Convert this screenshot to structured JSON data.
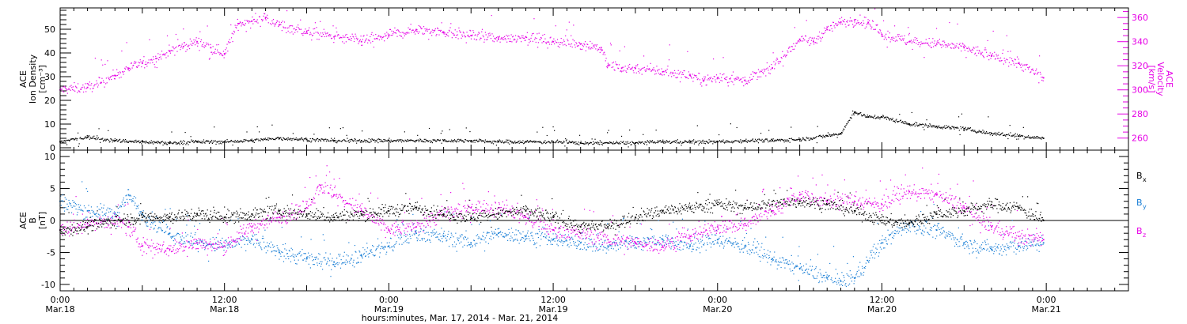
{
  "colors": {
    "black": "#000000",
    "magenta": "#e600e6",
    "blue": "#1a7fd6"
  },
  "time_axis": {
    "tick_labels": [
      {
        "time": "0:00",
        "date": "Mar.18",
        "hours": 0
      },
      {
        "time": "12:00",
        "date": "Mar.18",
        "hours": 12
      },
      {
        "time": "0:00",
        "date": "Mar.19",
        "hours": 24
      },
      {
        "time": "12:00",
        "date": "Mar.19",
        "hours": 36
      },
      {
        "time": "0:00",
        "date": "Mar.20",
        "hours": 48
      },
      {
        "time": "12:00",
        "date": "Mar.20",
        "hours": 60
      },
      {
        "time": "0:00",
        "date": "Mar.21",
        "hours": 72
      }
    ],
    "title": "hours:minutes, Mar. 17, 2014 - Mar. 21, 2014",
    "range_hours": [
      0,
      78
    ],
    "minor_tick_hours": 1,
    "medium_tick_hours": 6
  },
  "chart_data": [
    {
      "type": "scatter",
      "ylabel_left": [
        "ACE",
        "Ion Density",
        "[cm⁻³]"
      ],
      "ylabel_right": [
        "ACE",
        "Velocity",
        "[km/s]"
      ],
      "ylim_left": [
        -1,
        59
      ],
      "ylim_right": [
        250,
        368
      ],
      "yticks_left": [
        0,
        10,
        20,
        30,
        40,
        50
      ],
      "yticks_right": [
        260,
        280,
        300,
        320,
        340,
        360
      ],
      "series": [
        {
          "axis": "left",
          "color": "#000000",
          "x": [
            0,
            2,
            4,
            6,
            8,
            10,
            12,
            14,
            16,
            18,
            20,
            22,
            24,
            26,
            28,
            30,
            32,
            34,
            36,
            38,
            40,
            42,
            44,
            46,
            48,
            50,
            52,
            54,
            56,
            57,
            58,
            59,
            60,
            62,
            64,
            66,
            68,
            70,
            71.8
          ],
          "y": [
            2.5,
            4.5,
            3,
            2.5,
            2,
            2.5,
            2.5,
            3,
            4,
            3.5,
            3,
            3,
            3,
            3,
            3,
            3,
            2.5,
            2.5,
            2.5,
            2,
            2,
            2,
            2.5,
            2.5,
            2.5,
            3,
            3,
            3.5,
            5,
            6,
            15,
            13,
            13,
            10,
            9,
            8,
            6,
            5,
            4
          ]
        },
        {
          "axis": "right",
          "color": "#e600e6",
          "x": [
            0,
            2,
            3,
            4,
            5,
            6,
            7,
            8,
            9,
            10,
            11,
            12,
            13,
            14,
            15,
            16,
            18,
            20,
            22,
            24,
            26,
            28,
            30,
            32,
            34,
            36,
            38,
            39.5,
            40,
            41,
            42,
            44,
            46,
            47,
            48,
            50,
            52,
            54,
            55,
            56,
            57,
            58,
            59,
            60,
            62,
            64,
            66,
            68,
            70,
            71.8
          ],
          "y": [
            300,
            302,
            306,
            312,
            318,
            322,
            326,
            332,
            336,
            340,
            335,
            330,
            355,
            357,
            360,
            354,
            348,
            344,
            340,
            345,
            350,
            348,
            345,
            342,
            344,
            340,
            338,
            335,
            320,
            318,
            318,
            315,
            312,
            308,
            310,
            308,
            318,
            342,
            340,
            350,
            356,
            358,
            356,
            346,
            340,
            338,
            335,
            328,
            322,
            310
          ]
        }
      ]
    },
    {
      "type": "scatter",
      "ylabel": [
        "ACE",
        "B",
        "[nT]"
      ],
      "ylim": [
        -11,
        11
      ],
      "yticks": [
        -10,
        -5,
        0,
        5,
        10
      ],
      "zero_line": true,
      "legend": [
        {
          "label": "B",
          "sub": "x",
          "color": "#000000"
        },
        {
          "label": "B",
          "sub": "y",
          "color": "#1a7fd6"
        },
        {
          "label": "B",
          "sub": "z",
          "color": "#e600e6"
        }
      ],
      "series": [
        {
          "name": "Bx",
          "color": "#000000",
          "x": [
            0,
            2,
            4,
            6,
            8,
            10,
            12,
            14,
            16,
            18,
            20,
            22,
            24,
            26,
            28,
            30,
            32,
            34,
            36,
            38,
            40,
            42,
            44,
            46,
            48,
            50,
            52,
            54,
            56,
            58,
            60,
            62,
            64,
            66,
            68,
            70,
            71.8
          ],
          "y": [
            -1.5,
            -1,
            0,
            0.5,
            0.5,
            1,
            0.5,
            1,
            1.5,
            1,
            0.5,
            1,
            1.5,
            2,
            1,
            0.5,
            1,
            1.5,
            0.5,
            -1,
            -1,
            0.5,
            1.5,
            2,
            2.5,
            2,
            2.5,
            3,
            2.5,
            1.5,
            0,
            -0.5,
            1,
            1.5,
            2.5,
            2,
            0
          ]
        },
        {
          "name": "By",
          "color": "#1a7fd6",
          "x": [
            0,
            2,
            4,
            5,
            6,
            8,
            10,
            12,
            14,
            16,
            18,
            20,
            22,
            24,
            26,
            28,
            30,
            32,
            34,
            36,
            38,
            40,
            42,
            44,
            46,
            48,
            50,
            52,
            54,
            56,
            57,
            58,
            60,
            62,
            64,
            66,
            68,
            70,
            71.8
          ],
          "y": [
            3,
            1.5,
            1,
            4,
            1,
            -2,
            -3.5,
            -4,
            -3,
            -5,
            -6,
            -6.5,
            -5.5,
            -4,
            -2,
            -2.5,
            -3.5,
            -2,
            -2.5,
            -3,
            -3.5,
            -4,
            -3.5,
            -3,
            -4,
            -3,
            -4,
            -6,
            -7.5,
            -9,
            -9.5,
            -9,
            -3.5,
            -0.5,
            -1.5,
            -3.5,
            -4.5,
            -4,
            -3.5
          ]
        },
        {
          "name": "Bz",
          "color": "#e600e6",
          "x": [
            0,
            2,
            4,
            5,
            6,
            8,
            10,
            12,
            14,
            16,
            18,
            19,
            20,
            22,
            24,
            26,
            28,
            30,
            32,
            34,
            36,
            38,
            40,
            42,
            44,
            46,
            48,
            50,
            52,
            54,
            56,
            58,
            60,
            62,
            64,
            66,
            68,
            70,
            71.8
          ],
          "y": [
            -1.5,
            -0.5,
            0,
            -1,
            -4,
            -4.5,
            -3.5,
            -4,
            -1,
            0.5,
            2,
            5.5,
            4,
            1.5,
            -1.5,
            -1,
            1,
            2,
            2,
            0.5,
            -1.5,
            -2,
            -3,
            -3.5,
            -4,
            -2.5,
            -1,
            -0.5,
            1.5,
            4,
            3,
            3,
            2.5,
            4.5,
            4,
            2,
            -1,
            -2.5,
            -3
          ]
        }
      ]
    }
  ]
}
